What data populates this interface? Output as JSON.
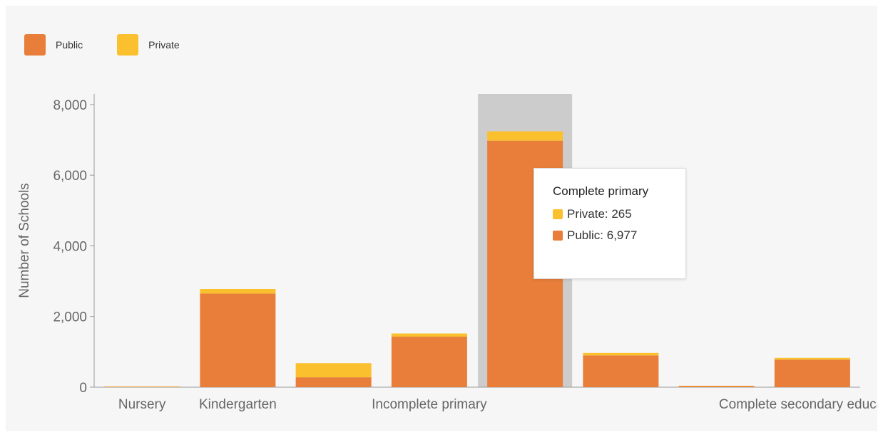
{
  "legend": {
    "items": [
      {
        "label": "Public",
        "color": "#E87E3A"
      },
      {
        "label": "Private",
        "color": "#FBC02D"
      }
    ]
  },
  "tooltip": {
    "title": "Complete primary",
    "rows": [
      {
        "label": "Private: 265",
        "color": "#FBC02D"
      },
      {
        "label": "Public: 6,977",
        "color": "#E87E3A"
      }
    ]
  },
  "chart_data": {
    "type": "bar",
    "stacked": true,
    "title": "",
    "xlabel": "",
    "ylabel": "Number of Schools",
    "ylim": [
      0,
      8300
    ],
    "yticks": [
      0,
      2000,
      4000,
      6000,
      8000
    ],
    "ytick_labels": [
      "0",
      "2,000",
      "4,000",
      "6,000",
      "8,000"
    ],
    "categories": [
      "Nursery",
      "Kindergarten",
      "",
      "Incomplete primary",
      "Complete primary",
      "",
      "",
      "Complete secondary education"
    ],
    "highlighted_index": 4,
    "highlight_color": "#CCCCCC",
    "series": [
      {
        "name": "Public",
        "color": "#E87E3A",
        "values": [
          10,
          2650,
          280,
          1430,
          6977,
          900,
          30,
          780
        ]
      },
      {
        "name": "Private",
        "color": "#FBC02D",
        "values": [
          10,
          130,
          400,
          90,
          265,
          70,
          10,
          50
        ]
      }
    ],
    "x_tick_labels": [
      {
        "index": 0,
        "label": "Nursery"
      },
      {
        "index": 1,
        "label": "Kindergarten"
      },
      {
        "index": 3,
        "label": "Incomplete primary"
      },
      {
        "index": 7,
        "label": "Complete secondary education"
      }
    ]
  }
}
